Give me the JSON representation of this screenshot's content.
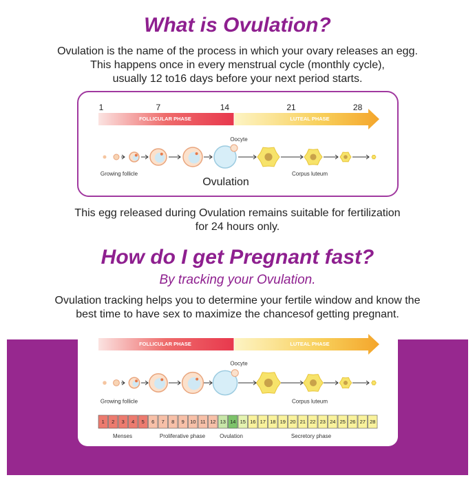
{
  "section1": {
    "title": "What is Ovulation?",
    "paragraph": [
      "Ovulation is the name of the process in which your ovary releases an egg.",
      "This happens once in every menstrual cycle (monthly cycle),",
      "usually 12 to16 days before your next period starts."
    ],
    "diagram": {
      "day_labels": [
        1,
        7,
        14,
        21,
        28
      ],
      "follicular_phase": "FOLLICULAR PHASE",
      "luteal_phase": "LUTEAL PHASE",
      "oocyte": "Oocyte",
      "growing_follicle": "Growing follicle",
      "ovulation": "Ovulation",
      "corpus_luteum": "Corpus luteum"
    },
    "note": [
      "This egg released during Ovulation remains suitable for fertilization",
      "for 24 hours only."
    ]
  },
  "section2": {
    "title": "How do I get Pregnant fast?",
    "subtitle": "By tracking your Ovulation.",
    "paragraph": [
      "Ovulation tracking helps you to determine your fertile window and know the",
      "best time to have sex to maximize the chancesof getting pregnant."
    ],
    "diagram": {
      "follicular_phase": "FOLLICULAR PHASE",
      "luteal_phase": "LUTEAL PHASE",
      "oocyte": "Oocyte",
      "growing_follicle": "Growing follicle",
      "corpus_luteum": "Corpus luteum",
      "days": [
        1,
        2,
        3,
        4,
        5,
        6,
        7,
        8,
        9,
        10,
        11,
        12,
        13,
        14,
        15,
        16,
        17,
        18,
        19,
        20,
        21,
        22,
        23,
        24,
        25,
        26,
        27,
        28
      ],
      "phases": [
        "Menses",
        "Proliferative phase",
        "Ovulation",
        "Secretory phase"
      ]
    }
  }
}
